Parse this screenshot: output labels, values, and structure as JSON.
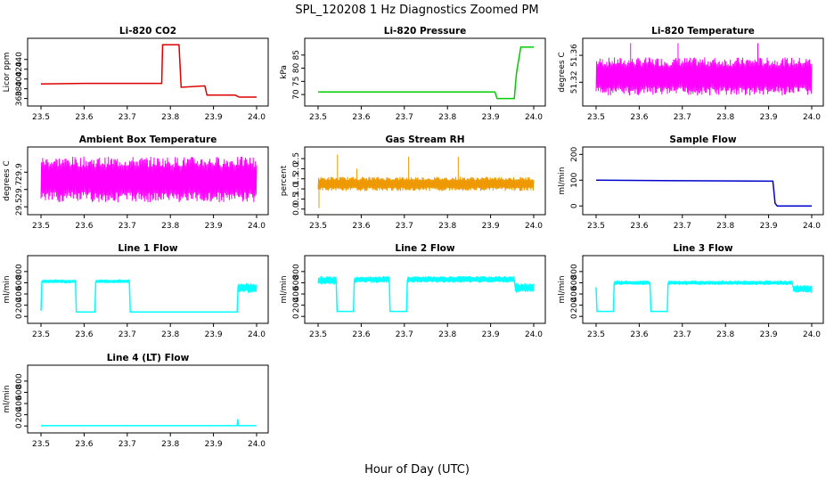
{
  "figure": {
    "title": "SPL_120208  1 Hz Diagnostics Zoomed PM",
    "xlabel": "Hour of Day (UTC)"
  },
  "chart_data": [
    {
      "type": "line",
      "title": "Li-820 CO2",
      "ylabel": "Licor ppm",
      "color": "#dd0000",
      "xlim": [
        23.5,
        24.0
      ],
      "ylim": [
        352,
        476
      ],
      "yticks": [
        "360",
        "380",
        "400",
        "420",
        "440"
      ],
      "x": [
        23.5,
        23.6,
        23.7,
        23.78,
        23.782,
        23.82,
        23.825,
        23.88,
        23.885,
        23.95,
        23.96,
        24.0
      ],
      "y": [
        390,
        391,
        391,
        391,
        470,
        470,
        383,
        386,
        367,
        367,
        363,
        363
      ]
    },
    {
      "type": "line",
      "title": "Li-820 Pressure",
      "ylabel": "kPa",
      "color": "#00cc00",
      "xlim": [
        23.5,
        24.0
      ],
      "ylim": [
        67,
        90
      ],
      "yticks": [
        "70",
        "75",
        "80",
        "85"
      ],
      "x": [
        23.5,
        23.7,
        23.91,
        23.915,
        23.955,
        23.96,
        23.97,
        24.0
      ],
      "y": [
        71,
        71,
        71,
        68.5,
        68.5,
        78,
        88,
        88
      ]
    },
    {
      "type": "line",
      "title": "Li-820 Temperature",
      "ylabel": "degrees C",
      "color": "#ff00ff",
      "xlim": [
        23.5,
        24.0
      ],
      "ylim": [
        51.29,
        51.38
      ],
      "yticks": [
        "51.32",
        "51.36"
      ],
      "x": [
        23.5,
        24.0
      ],
      "y": [
        51.34,
        51.34
      ],
      "band": [
        51.3,
        51.357
      ],
      "spikes": [
        {
          "x": 23.58,
          "y": 51.378
        },
        {
          "x": 23.69,
          "y": 51.378
        },
        {
          "x": 23.875,
          "y": 51.378
        }
      ]
    },
    {
      "type": "line",
      "title": "Ambient Box Temperature",
      "ylabel": "degrees C",
      "color": "#ff00ff",
      "xlim": [
        23.5,
        24.0
      ],
      "ylim": [
        29.45,
        30.15
      ],
      "yticks": [
        "29.5",
        "29.7",
        "29.9"
      ],
      "x": [
        23.5,
        23.75,
        24.0
      ],
      "y": [
        29.77,
        29.82,
        29.85
      ],
      "band": [
        29.55,
        30.08
      ]
    },
    {
      "type": "line",
      "title": "Gas Stream RH",
      "ylabel": "percent",
      "color": "#ee9900",
      "xlim": [
        23.5,
        24.0
      ],
      "ylim": [
        -0.1,
        2.9
      ],
      "yticks": [
        "0.0",
        "0.5",
        "1.0",
        "1.5",
        "2.0",
        "2.5"
      ],
      "x": [
        23.5,
        24.0
      ],
      "y": [
        1.25,
        1.25
      ],
      "band": [
        0.9,
        1.6
      ],
      "spikes": [
        {
          "x": 23.502,
          "y": 0.05
        },
        {
          "x": 23.545,
          "y": 2.7
        },
        {
          "x": 23.71,
          "y": 2.6
        },
        {
          "x": 23.825,
          "y": 2.6
        },
        {
          "x": 23.59,
          "y": 2.0
        }
      ]
    },
    {
      "type": "line",
      "title": "Sample Flow",
      "ylabel": "ml/min",
      "color": "#0000cc",
      "xlim": [
        23.5,
        24.0
      ],
      "ylim": [
        -20,
        215
      ],
      "yticks": [
        "0",
        "100",
        "200"
      ],
      "x": [
        23.5,
        23.7,
        23.91,
        23.915,
        23.92,
        24.0
      ],
      "y": [
        100,
        98,
        96,
        10,
        0,
        0
      ]
    },
    {
      "type": "line",
      "title": "Line 1 Flow",
      "ylabel": "ml/min",
      "color": "#00ffff",
      "xlim": [
        23.5,
        24.0
      ],
      "ylim": [
        -60,
        1020
      ],
      "yticks": [
        "0",
        "200",
        "400",
        "600",
        "800"
      ],
      "x": [
        23.5,
        23.502,
        23.58,
        23.582,
        23.625,
        23.627,
        23.705,
        23.707,
        23.955,
        23.957,
        24.0
      ],
      "y": [
        100,
        620,
        620,
        80,
        80,
        620,
        620,
        80,
        80,
        540,
        540
      ],
      "bands": [
        [
          23.502,
          23.58,
          590,
          660
        ],
        [
          23.627,
          23.705,
          590,
          660
        ],
        [
          23.957,
          24.0,
          420,
          600
        ]
      ]
    },
    {
      "type": "line",
      "title": "Line 2 Flow",
      "ylabel": "ml/min",
      "color": "#00ffff",
      "xlim": [
        23.5,
        24.0
      ],
      "ylim": [
        -60,
        1020
      ],
      "yticks": [
        "0",
        "200",
        "400",
        "600",
        "800"
      ],
      "x": [
        23.5,
        23.542,
        23.544,
        23.582,
        23.584,
        23.665,
        23.667,
        23.705,
        23.707,
        23.955,
        23.957,
        24.0
      ],
      "y": [
        650,
        650,
        90,
        90,
        650,
        650,
        90,
        90,
        650,
        650,
        520,
        520
      ],
      "bands": [
        [
          23.5,
          23.542,
          560,
          720
        ],
        [
          23.584,
          23.665,
          600,
          720
        ],
        [
          23.707,
          23.955,
          600,
          720
        ],
        [
          23.957,
          24.0,
          420,
          600
        ]
      ]
    },
    {
      "type": "line",
      "title": "Line 3 Flow",
      "ylabel": "ml/min",
      "color": "#00ffff",
      "xlim": [
        23.5,
        24.0
      ],
      "ylim": [
        -60,
        1020
      ],
      "yticks": [
        "0",
        "200",
        "400",
        "600",
        "800"
      ],
      "x": [
        23.5,
        23.502,
        23.54,
        23.542,
        23.625,
        23.627,
        23.665,
        23.667,
        23.955,
        23.957,
        24.0
      ],
      "y": [
        520,
        90,
        90,
        590,
        590,
        90,
        90,
        590,
        590,
        520,
        520
      ],
      "bands": [
        [
          23.542,
          23.625,
          560,
          640
        ],
        [
          23.667,
          23.955,
          560,
          640
        ],
        [
          23.957,
          24.0,
          420,
          560
        ]
      ]
    },
    {
      "type": "line",
      "title": "Line 4 (LT) Flow",
      "ylabel": "ml/min",
      "color": "#00ffff",
      "xlim": [
        23.5,
        24.0
      ],
      "ylim": [
        -60,
        1020
      ],
      "yticks": [
        "0",
        "200",
        "400",
        "600",
        "800"
      ],
      "x": [
        23.5,
        23.955,
        23.956,
        23.958,
        24.0
      ],
      "y": [
        5,
        5,
        120,
        5,
        5
      ]
    }
  ],
  "xticks": [
    "23.5",
    "23.6",
    "23.7",
    "23.8",
    "23.9",
    "24.0"
  ]
}
